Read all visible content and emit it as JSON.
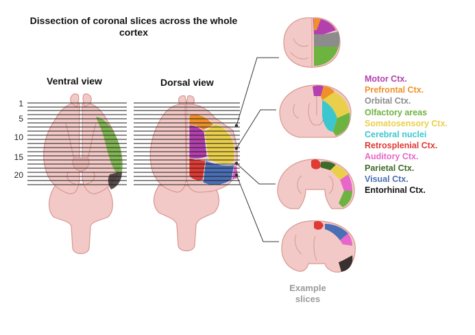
{
  "title": "Dissection of coronal slices across the whole cortex",
  "views": {
    "ventral": "Ventral view",
    "dorsal": "Dorsal view"
  },
  "slice_ticks": [
    "1",
    "5",
    "10",
    "15",
    "20"
  ],
  "example_label": "Example slices",
  "legend": [
    {
      "label": "Motor Ctx.",
      "color": "#b43fae"
    },
    {
      "label": "Prefrontal Ctx.",
      "color": "#f0902a"
    },
    {
      "label": "Orbital Ctx.",
      "color": "#8c8c8c"
    },
    {
      "label": "Olfactory areas",
      "color": "#6db33f"
    },
    {
      "label": "Somatosensory Ctx.",
      "color": "#ead04a"
    },
    {
      "label": "Cerebral nuclei",
      "color": "#3cc7cf"
    },
    {
      "label": "Retrosplenial Ctx.",
      "color": "#e03a34"
    },
    {
      "label": "Auditory Ctx.",
      "color": "#e667c9"
    },
    {
      "label": "Parietal Ctx.",
      "color": "#3f6b2a"
    },
    {
      "label": "Visual Ctx.",
      "color": "#4a6fb5"
    },
    {
      "label": "Entorhinal Ctx.",
      "color": "#151515"
    }
  ],
  "tissue_color": "#f2c9c6",
  "tissue_stroke": "#d89792"
}
